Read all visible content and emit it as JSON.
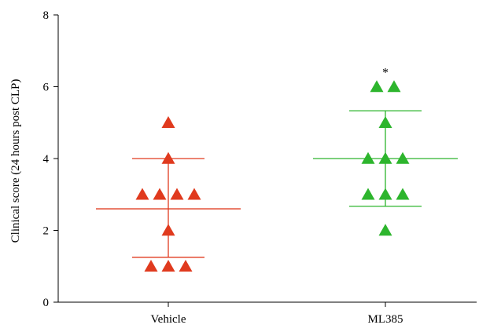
{
  "chart_data": {
    "type": "scatter",
    "title": "",
    "xlabel": "",
    "ylabel": "Clinical score (24 hours post CLP)",
    "ylim": [
      0,
      8
    ],
    "yticks": [
      0,
      2,
      4,
      6,
      8
    ],
    "categories": [
      "Vehicle",
      "ML385"
    ],
    "grid": false,
    "legend": "none",
    "series": [
      {
        "category": "Vehicle",
        "color": "#e03a1e",
        "marker": "triangle",
        "values": [
          5,
          4,
          3,
          3,
          3,
          3,
          2,
          1,
          1,
          1
        ],
        "mean": 2.6,
        "sd_upper": 4.0,
        "sd_lower": 1.25
      },
      {
        "category": "ML385",
        "color": "#2db52d",
        "marker": "triangle",
        "values": [
          6,
          6,
          5,
          4,
          4,
          4,
          3,
          3,
          3,
          2
        ],
        "mean": 4.0,
        "sd_upper": 5.33,
        "sd_lower": 2.67,
        "annotation": "*"
      }
    ]
  }
}
